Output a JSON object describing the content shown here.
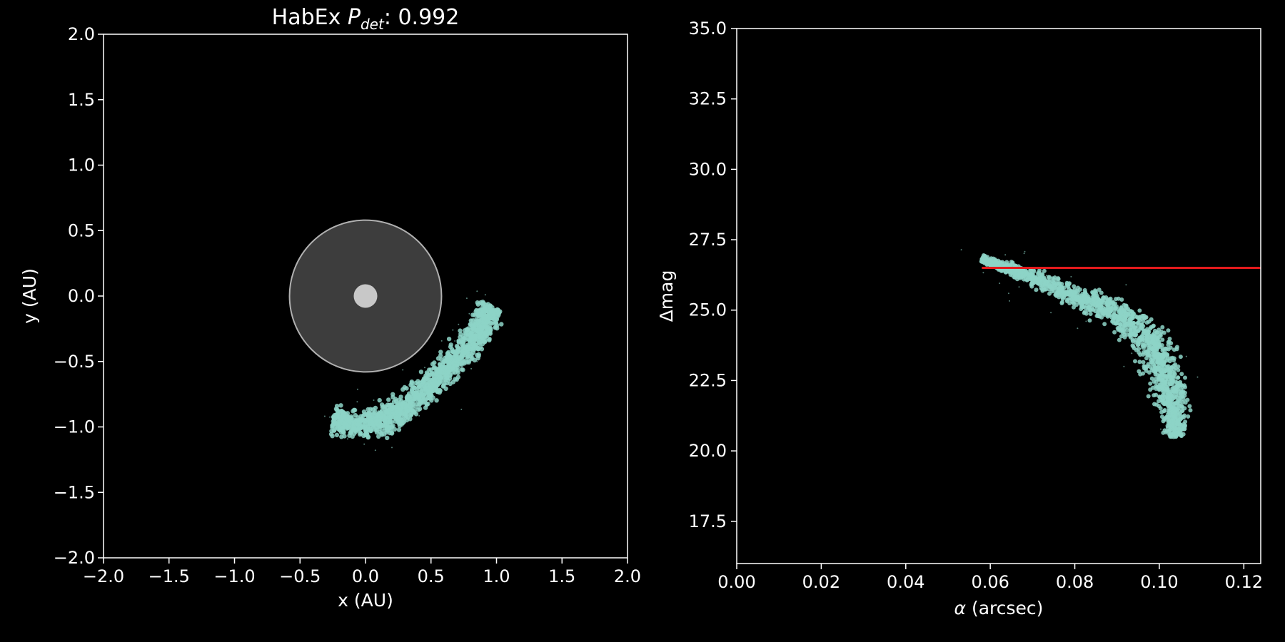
{
  "chart_data": [
    {
      "type": "scatter",
      "title": "HabEx Pdet: 0.992",
      "title_parts": {
        "prefix": "HabEx ",
        "symbol": "P",
        "subscript": "det",
        "suffix": ": 0.992"
      },
      "xlabel": "x (AU)",
      "ylabel": "y (AU)",
      "xlim": [
        -2.0,
        2.0
      ],
      "ylim": [
        -2.0,
        2.0
      ],
      "xticks": [
        "−2.0",
        "−1.5",
        "−1.0",
        "−0.5",
        "0.0",
        "0.5",
        "1.0",
        "1.5",
        "2.0"
      ],
      "yticks": [
        "−2.0",
        "−1.5",
        "−1.0",
        "−0.5",
        "0.0",
        "0.5",
        "1.0",
        "1.5",
        "2.0"
      ],
      "grid": false,
      "background": "#000000",
      "point_color": "#8dd3c7",
      "inner_working_angle_radius": 0.58,
      "star_radius": 0.09,
      "circle_fill": "#404040",
      "star_color": "#c8c8c8",
      "cloud": {
        "description_free": true,
        "centerline": [
          [
            -0.25,
            -0.95
          ],
          [
            0.05,
            -1.0
          ],
          [
            0.35,
            -0.82
          ],
          [
            0.6,
            -0.58
          ],
          [
            0.82,
            -0.33
          ],
          [
            0.97,
            -0.08
          ]
        ],
        "half_width": 0.09
      }
    },
    {
      "type": "scatter",
      "title": "",
      "xlabel": "α (arcsec)",
      "xlabel_parts": {
        "symbol": "α",
        "suffix": " (arcsec)"
      },
      "ylabel": "Δmag",
      "xlim": [
        0.0,
        0.124
      ],
      "ylim": [
        16.0,
        35.0
      ],
      "xticks": [
        "0.00",
        "0.02",
        "0.04",
        "0.06",
        "0.08",
        "0.10",
        "0.12"
      ],
      "yticks": [
        "17.5",
        "20.0",
        "22.5",
        "25.0",
        "27.5",
        "30.0",
        "32.5",
        "35.0"
      ],
      "grid": false,
      "point_color": "#8dd3c7",
      "limit_line": {
        "y": 26.5,
        "x_start": 0.058,
        "x_end": 0.124,
        "color": "#e41a1c"
      },
      "cloud": {
        "centerline": [
          [
            0.058,
            26.8
          ],
          [
            0.068,
            26.3
          ],
          [
            0.08,
            25.5
          ],
          [
            0.09,
            24.9
          ],
          [
            0.097,
            24.1
          ],
          [
            0.101,
            23.0
          ],
          [
            0.103,
            21.8
          ],
          [
            0.104,
            20.5
          ]
        ],
        "half_width": 0.35
      }
    }
  ]
}
